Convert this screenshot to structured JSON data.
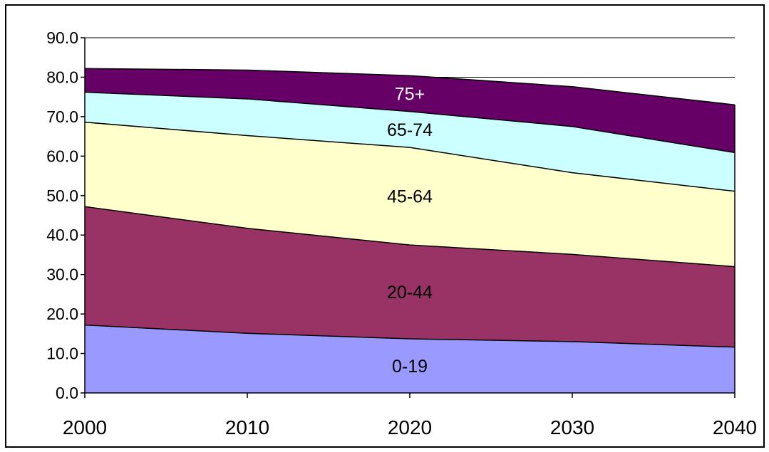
{
  "chart_data": {
    "type": "area",
    "stacked": true,
    "x": [
      "2000",
      "2010",
      "2020",
      "2030",
      "2040"
    ],
    "series": [
      {
        "name": "0-19",
        "color": "#9999FF",
        "values": [
          17.2,
          15.1,
          13.7,
          13.0,
          11.6
        ]
      },
      {
        "name": "20-44",
        "color": "#993366",
        "values": [
          30.0,
          26.6,
          23.8,
          22.1,
          20.4
        ]
      },
      {
        "name": "45-64",
        "color": "#FFFFCC",
        "values": [
          21.4,
          23.5,
          24.7,
          20.7,
          19.1
        ]
      },
      {
        "name": "65-74",
        "color": "#CCFFFF",
        "values": [
          7.6,
          9.3,
          9.1,
          11.7,
          9.8
        ]
      },
      {
        "name": "75+",
        "color": "#660066",
        "values": [
          6.0,
          7.3,
          9.1,
          10.1,
          12.1
        ]
      }
    ],
    "ylim": [
      0,
      90
    ],
    "yticks": [
      "0.0",
      "10.0",
      "20.0",
      "30.0",
      "40.0",
      "50.0",
      "60.0",
      "70.0",
      "80.0",
      "90.0"
    ],
    "grid": true,
    "title": "",
    "xlabel": "",
    "ylabel": ""
  }
}
